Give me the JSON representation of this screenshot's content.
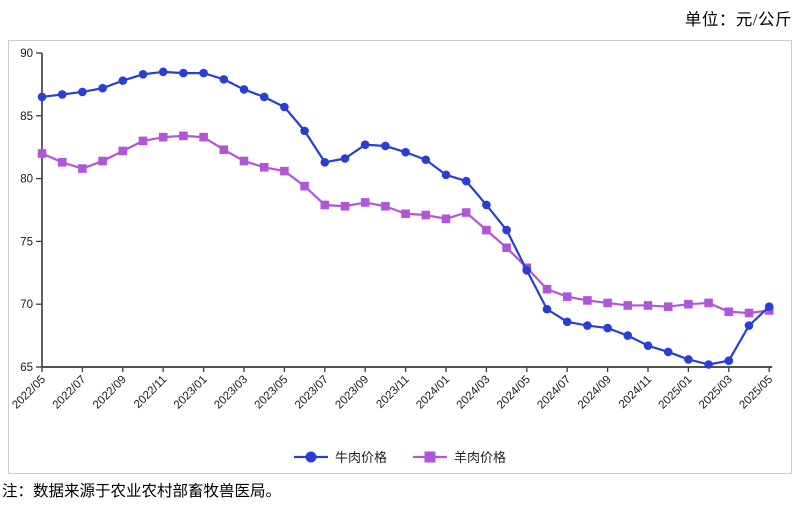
{
  "header": {
    "unit_label": "单位：元/公斤"
  },
  "footnote": "注：数据来源于农业农村部畜牧兽医局。",
  "colors": {
    "beef": "#2a3ed2",
    "mutton": "#b355d8",
    "axis": "#3a3a3a",
    "tick_label": "#1a1a1a",
    "panel_border": "#cbcbcb"
  },
  "chart_data": {
    "type": "line",
    "title": "",
    "xlabel": "",
    "ylabel": "",
    "ylim": [
      65,
      90
    ],
    "y_ticks": [
      65,
      70,
      75,
      80,
      85,
      90
    ],
    "grid": false,
    "legend_position": "bottom-center",
    "x_label_every": 2,
    "x": [
      "2022/05",
      "2022/06",
      "2022/07",
      "2022/08",
      "2022/09",
      "2022/10",
      "2022/11",
      "2022/12",
      "2023/01",
      "2023/02",
      "2023/03",
      "2023/04",
      "2023/05",
      "2023/06",
      "2023/07",
      "2023/08",
      "2023/09",
      "2023/10",
      "2023/11",
      "2023/12",
      "2024/01",
      "2024/02",
      "2024/03",
      "2024/04",
      "2024/05",
      "2024/06",
      "2024/07",
      "2024/08",
      "2024/09",
      "2024/10",
      "2024/11",
      "2024/12",
      "2025/01",
      "2025/02",
      "2025/03",
      "2025/04",
      "2025/05"
    ],
    "series": [
      {
        "id": "mutton-price",
        "name": "羊肉价格",
        "marker": "square",
        "color": "#b355d8",
        "values": [
          82.0,
          81.3,
          80.8,
          81.4,
          82.2,
          83.0,
          83.3,
          83.4,
          83.3,
          82.3,
          81.4,
          80.9,
          80.6,
          79.4,
          77.9,
          77.8,
          78.1,
          77.8,
          77.2,
          77.1,
          76.8,
          77.3,
          75.9,
          74.5,
          72.9,
          71.2,
          70.6,
          70.3,
          70.1,
          69.9,
          69.9,
          69.8,
          70.0,
          70.1,
          69.4,
          69.3,
          69.5
        ]
      },
      {
        "id": "beef-price",
        "name": "牛肉价格",
        "marker": "circle",
        "color": "#2a3ed2",
        "values": [
          86.5,
          86.7,
          86.9,
          87.2,
          87.8,
          88.3,
          88.5,
          88.4,
          88.4,
          87.9,
          87.1,
          86.5,
          85.7,
          83.8,
          81.3,
          81.6,
          82.7,
          82.6,
          82.1,
          81.5,
          80.3,
          79.8,
          77.9,
          75.9,
          72.7,
          69.6,
          68.6,
          68.3,
          68.1,
          67.5,
          66.7,
          66.2,
          65.6,
          65.2,
          65.5,
          68.3,
          69.8
        ]
      }
    ],
    "legend_order": [
      "beef-price",
      "mutton-price"
    ]
  }
}
